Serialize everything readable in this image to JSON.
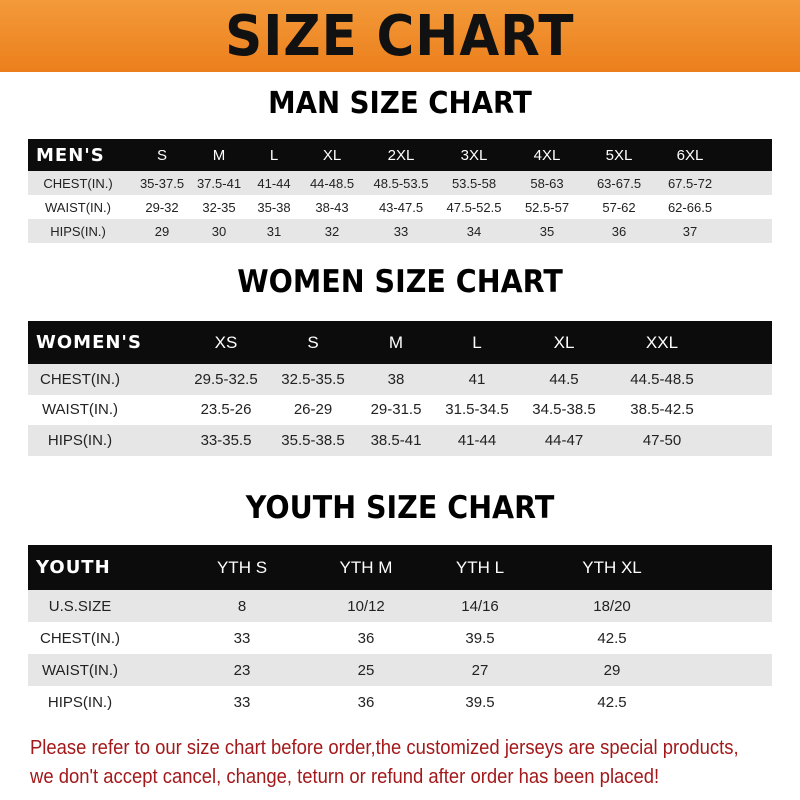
{
  "title": "SIZE CHART",
  "men": {
    "title": "MAN SIZE CHART",
    "header": [
      "MEN'S",
      "S",
      "M",
      "L",
      "XL",
      "2XL",
      "3XL",
      "4XL",
      "5XL",
      "6XL"
    ],
    "rows": [
      [
        "CHEST(IN.)",
        "35-37.5",
        "37.5-41",
        "41-44",
        "44-48.5",
        "48.5-53.5",
        "53.5-58",
        "58-63",
        "63-67.5",
        "67.5-72"
      ],
      [
        "WAIST(IN.)",
        "29-32",
        "32-35",
        "35-38",
        "38-43",
        "43-47.5",
        "47.5-52.5",
        "52.5-57",
        "57-62",
        "62-66.5"
      ],
      [
        "HIPS(IN.)",
        "29",
        "30",
        "31",
        "32",
        "33",
        "34",
        "35",
        "36",
        "37"
      ]
    ]
  },
  "women": {
    "title": "WOMEN SIZE CHART",
    "header": [
      "WOMEN'S",
      "XS",
      "S",
      "M",
      "L",
      "XL",
      "XXL"
    ],
    "rows": [
      [
        "CHEST(IN.)",
        "29.5-32.5",
        "32.5-35.5",
        "38",
        "41",
        "44.5",
        "44.5-48.5"
      ],
      [
        "WAIST(IN.)",
        "23.5-26",
        "26-29",
        "29-31.5",
        "31.5-34.5",
        "34.5-38.5",
        "38.5-42.5"
      ],
      [
        "HIPS(IN.)",
        "33-35.5",
        "35.5-38.5",
        "38.5-41",
        "41-44",
        "44-47",
        "47-50"
      ]
    ]
  },
  "youth": {
    "title": "YOUTH SIZE CHART",
    "header": [
      "YOUTH",
      "YTH S",
      "YTH M",
      "YTH L",
      "YTH XL"
    ],
    "rows": [
      [
        "U.S.SIZE",
        "8",
        "10/12",
        "14/16",
        "18/20"
      ],
      [
        "CHEST(IN.)",
        "33",
        "36",
        "39.5",
        "42.5"
      ],
      [
        "WAIST(IN.)",
        "23",
        "25",
        "27",
        "29"
      ],
      [
        "HIPS(IN.)",
        "33",
        "36",
        "39.5",
        "42.5"
      ]
    ]
  },
  "note": {
    "line1": "Please refer to our size chart before order,the customized jerseys are special products,",
    "line2": "we don't accept cancel, change, teturn or refund after order has been placed!"
  },
  "colors": {
    "banner": "#ee8a2a",
    "header_row": "#0c0c0c",
    "stripe": "#e6e6e6",
    "note": "#a3181a"
  }
}
